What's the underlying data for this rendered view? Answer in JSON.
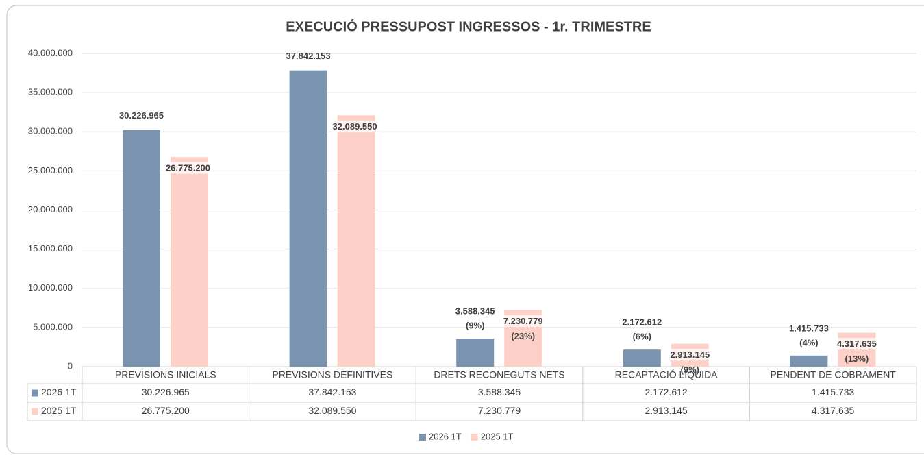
{
  "chart_data": {
    "type": "bar",
    "title": "EXECUCIÓ PRESSUPOST INGRESSOS - 1r. TRIMESTRE",
    "categories": [
      "PREVISIONS INICIALS",
      "PREVISIONS DEFINITIVES",
      "DRETS RECONEGUTS NETS",
      "RECAPTACIÓ LÍQUIDA",
      "PENDENT DE COBRAMENT"
    ],
    "series": [
      {
        "name": "2026 1T",
        "color": "#7a94b0",
        "values": [
          30226965,
          37842153,
          3588345,
          2172612,
          1415733
        ],
        "value_labels": [
          "30.226.965",
          "37.842.153",
          "3.588.345",
          "2.172.612",
          "1.415.733"
        ],
        "share_labels": [
          null,
          null,
          "(9%)",
          "(6%)",
          "(4%)"
        ]
      },
      {
        "name": "2025 1T",
        "color": "#fdd0c8",
        "values": [
          26775200,
          32089550,
          7230779,
          2913145,
          4317635
        ],
        "value_labels": [
          "26.775.200",
          "32.089.550",
          "7.230.779",
          "2.913.145",
          "4.317.635"
        ],
        "share_labels": [
          null,
          null,
          "(23%)",
          "(9%)",
          "(13%)"
        ]
      }
    ],
    "ylim": [
      0,
      40000000
    ],
    "yticks": [
      0,
      {
        "value": 5000000,
        "label": "5.000.000"
      },
      {
        "value": 10000000,
        "label": "10.000.000"
      },
      {
        "value": 15000000,
        "label": "15.000.000"
      },
      {
        "value": 20000000,
        "label": "20.000.000"
      },
      {
        "value": 25000000,
        "label": "25.000.000"
      },
      {
        "value": 30000000,
        "label": "30.000.000"
      },
      {
        "value": 35000000,
        "label": "35.000.000"
      },
      {
        "value": 40000000,
        "label": "40.000.000"
      }
    ],
    "grid": true,
    "legend": "bottom"
  }
}
